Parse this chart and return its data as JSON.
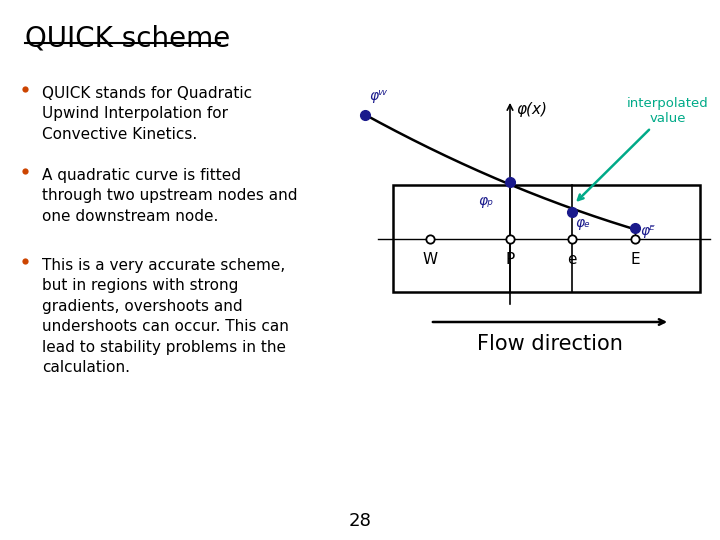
{
  "title": "QUICK scheme",
  "bullet_color": "#cc4400",
  "text_color": "#000000",
  "bullets": [
    "QUICK stands for Quadratic\nUpwind Interpolation for\nConvective Kinetics.",
    "A quadratic curve is fitted\nthrough two upstream nodes and\none downstream node.",
    "This is a very accurate scheme,\nbut in regions with strong\ngradients, overshoots and\nundershoots can occur. This can\nlead to stability problems in the\ncalculation."
  ],
  "node_color": "#1a1a8c",
  "interp_color": "#00aa88",
  "phi_x_label": "φ(x)",
  "phi_W_label": "φᵂ",
  "phi_P_label": "φₚ",
  "phi_e_label": "φₑ",
  "phi_E_label": "φᴱ",
  "node_W_label": "W",
  "node_P_label": "P",
  "node_e_label": "e",
  "node_E_label": "E",
  "interp_label": "interpolated\nvalue",
  "flow_label": "Flow direction",
  "page_number": "28"
}
